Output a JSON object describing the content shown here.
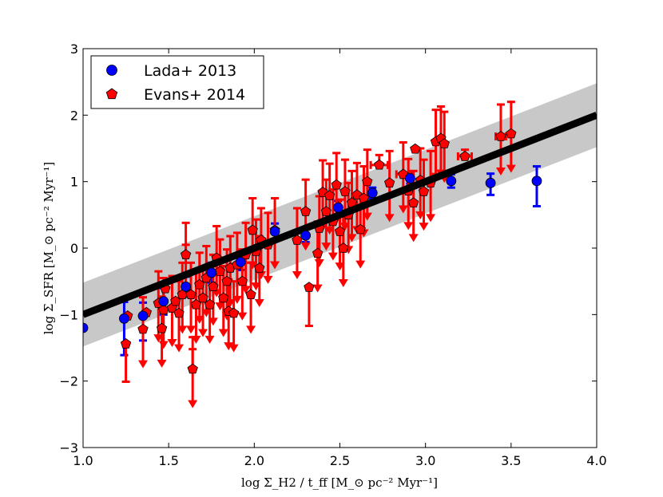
{
  "chart_data": {
    "type": "scatter",
    "title": "",
    "xlabel": "log Σ_H2 / t_ff [M_⊙ pc⁻² Myr⁻¹]",
    "ylabel": "log Σ_SFR [M_⊙ pc⁻² Myr⁻¹]",
    "xlim": [
      1.0,
      4.0
    ],
    "ylim": [
      -3,
      3
    ],
    "xticks": [
      1.0,
      1.5,
      2.0,
      2.5,
      3.0,
      3.5,
      4.0
    ],
    "xtick_labels": [
      "1.0",
      "1.5",
      "2.0",
      "2.5",
      "3.0",
      "3.5",
      "4.0"
    ],
    "yticks": [
      -3,
      -2,
      -1,
      0,
      1,
      2,
      3
    ],
    "ytick_labels": [
      "−3",
      "−2",
      "−1",
      "0",
      "1",
      "2",
      "3"
    ],
    "fit_line": {
      "description": "one-to-one relation",
      "x": [
        1.0,
        4.0
      ],
      "y": [
        -1.0,
        2.0
      ],
      "band_halfwidth": 0.48,
      "line_color": "#000000",
      "band_color": "#c8c8c8"
    },
    "legend": {
      "placement": "top-left",
      "entries": [
        {
          "label": "Lada+ 2013",
          "marker": "circle",
          "color": "#0000ff"
        },
        {
          "label": "Evans+ 2014",
          "marker": "pentagon",
          "color": "#ff0000"
        }
      ]
    },
    "series": [
      {
        "name": "Lada+ 2013",
        "marker": "circle",
        "color": "#0000ff",
        "points": [
          {
            "x": 1.0,
            "y": -1.2,
            "yerr_lo": 0.0,
            "yerr_hi": 0.0
          },
          {
            "x": 1.24,
            "y": -1.06,
            "yerr_lo": 0.55,
            "yerr_hi": 0.25
          },
          {
            "x": 1.35,
            "y": -1.02,
            "yerr_lo": 0.37,
            "yerr_hi": 0.2
          },
          {
            "x": 1.47,
            "y": -0.8,
            "yerr_lo": 0.2,
            "yerr_hi": 0.2
          },
          {
            "x": 1.6,
            "y": -0.58,
            "yerr_lo": 0.15,
            "yerr_hi": 0.15
          },
          {
            "x": 1.75,
            "y": -0.37,
            "yerr_lo": 0.15,
            "yerr_hi": 0.15
          },
          {
            "x": 1.92,
            "y": -0.21,
            "yerr_lo": 0.12,
            "yerr_hi": 0.12
          },
          {
            "x": 2.12,
            "y": 0.25,
            "yerr_lo": 0.12,
            "yerr_hi": 0.12
          },
          {
            "x": 2.3,
            "y": 0.19,
            "yerr_lo": 0.1,
            "yerr_hi": 0.1
          },
          {
            "x": 2.49,
            "y": 0.61,
            "yerr_lo": 0.1,
            "yerr_hi": 0.1
          },
          {
            "x": 2.69,
            "y": 0.83,
            "yerr_lo": 0.08,
            "yerr_hi": 0.08
          },
          {
            "x": 2.91,
            "y": 1.05,
            "yerr_lo": 0.08,
            "yerr_hi": 0.08
          },
          {
            "x": 3.15,
            "y": 1.01,
            "yerr_lo": 0.1,
            "yerr_hi": 0.1
          },
          {
            "x": 3.38,
            "y": 0.98,
            "yerr_lo": 0.18,
            "yerr_hi": 0.14
          },
          {
            "x": 3.65,
            "y": 1.01,
            "yerr_lo": 0.38,
            "yerr_hi": 0.22
          }
        ]
      },
      {
        "name": "Evans+ 2014",
        "marker": "pentagon",
        "color": "#ff0000",
        "points": [
          {
            "x": 1.25,
            "y": -1.44,
            "yerr_lo": 0.57,
            "yerr_hi": 0.0,
            "xerr": 0.0,
            "upper_limit": false
          },
          {
            "x": 1.26,
            "y": -1.02,
            "yerr_lo": 0.0,
            "yerr_hi": 0.0,
            "xerr": 0.0,
            "upper_limit": false
          },
          {
            "x": 1.35,
            "y": -1.22,
            "yerr_lo": 0.0,
            "yerr_hi": 0.0,
            "xerr": 0.0,
            "upper_limit": true
          },
          {
            "x": 1.37,
            "y": -0.97,
            "yerr_lo": 0.0,
            "yerr_hi": 0.0,
            "xerr": 0.0,
            "upper_limit": false
          },
          {
            "x": 1.44,
            "y": -0.83,
            "yerr_lo": 0.0,
            "yerr_hi": 0.0,
            "xerr": 0.0,
            "upper_limit": true
          },
          {
            "x": 1.46,
            "y": -1.21,
            "yerr_lo": 0.0,
            "yerr_hi": 0.0,
            "xerr": 0.0,
            "upper_limit": true
          },
          {
            "x": 1.47,
            "y": -0.93,
            "yerr_lo": 0.0,
            "yerr_hi": 0.0,
            "xerr": 0.0,
            "upper_limit": true
          },
          {
            "x": 1.48,
            "y": -0.61,
            "yerr_lo": 0.0,
            "yerr_hi": 0.0,
            "xerr": 0.0,
            "upper_limit": false
          },
          {
            "x": 1.52,
            "y": -0.9,
            "yerr_lo": 0.0,
            "yerr_hi": 0.0,
            "xerr": 0.0,
            "upper_limit": true
          },
          {
            "x": 1.54,
            "y": -0.8,
            "yerr_lo": 0.0,
            "yerr_hi": 0.0,
            "xerr": 0.0,
            "upper_limit": false
          },
          {
            "x": 1.56,
            "y": -0.98,
            "yerr_lo": 0.0,
            "yerr_hi": 0.0,
            "xerr": 0.0,
            "upper_limit": true
          },
          {
            "x": 1.58,
            "y": -0.7,
            "yerr_lo": 0.0,
            "yerr_hi": 0.0,
            "xerr": 0.0,
            "upper_limit": true
          },
          {
            "x": 1.6,
            "y": -0.1,
            "yerr_lo": 0.0,
            "yerr_hi": 0.15,
            "xerr": 0.0,
            "upper_limit": true
          },
          {
            "x": 1.63,
            "y": -0.7,
            "yerr_lo": 0.0,
            "yerr_hi": 0.0,
            "xerr": 0.0,
            "upper_limit": true
          },
          {
            "x": 1.64,
            "y": -1.82,
            "yerr_lo": 0.0,
            "yerr_hi": 0.3,
            "xerr": 0.0,
            "upper_limit": true
          },
          {
            "x": 1.66,
            "y": -0.85,
            "yerr_lo": 0.0,
            "yerr_hi": 0.0,
            "xerr": 0.0,
            "upper_limit": true
          },
          {
            "x": 1.68,
            "y": -0.55,
            "yerr_lo": 0.0,
            "yerr_hi": 0.0,
            "xerr": 0.0,
            "upper_limit": true
          },
          {
            "x": 1.7,
            "y": -0.75,
            "yerr_lo": 0.0,
            "yerr_hi": 0.0,
            "xerr": 0.0,
            "upper_limit": true
          },
          {
            "x": 1.72,
            "y": -0.45,
            "yerr_lo": 0.0,
            "yerr_hi": 0.0,
            "xerr": 0.0,
            "upper_limit": true
          },
          {
            "x": 1.74,
            "y": -0.85,
            "yerr_lo": 0.0,
            "yerr_hi": 0.0,
            "xerr": 0.0,
            "upper_limit": true
          },
          {
            "x": 1.76,
            "y": -0.58,
            "yerr_lo": 0.0,
            "yerr_hi": 0.0,
            "xerr": 0.0,
            "upper_limit": true
          },
          {
            "x": 1.78,
            "y": -0.15,
            "yerr_lo": 0.0,
            "yerr_hi": 0.0,
            "xerr": 0.0,
            "upper_limit": true
          },
          {
            "x": 1.8,
            "y": -0.35,
            "yerr_lo": 0.0,
            "yerr_hi": 0.0,
            "xerr": 0.0,
            "upper_limit": true
          },
          {
            "x": 1.82,
            "y": -0.75,
            "yerr_lo": 0.0,
            "yerr_hi": 0.0,
            "xerr": 0.0,
            "upper_limit": true
          },
          {
            "x": 1.84,
            "y": -0.5,
            "yerr_lo": 0.0,
            "yerr_hi": 0.0,
            "xerr": 0.0,
            "upper_limit": true
          },
          {
            "x": 1.85,
            "y": -0.95,
            "yerr_lo": 0.0,
            "yerr_hi": 0.0,
            "xerr": 0.0,
            "upper_limit": true
          },
          {
            "x": 1.86,
            "y": -0.3,
            "yerr_lo": 0.0,
            "yerr_hi": 0.0,
            "xerr": 0.0,
            "upper_limit": true
          },
          {
            "x": 1.88,
            "y": -0.98,
            "yerr_lo": 0.0,
            "yerr_hi": 0.0,
            "xerr": 0.0,
            "upper_limit": true
          },
          {
            "x": 1.9,
            "y": -0.25,
            "yerr_lo": 0.0,
            "yerr_hi": 0.0,
            "xerr": 0.0,
            "upper_limit": true
          },
          {
            "x": 1.93,
            "y": -0.5,
            "yerr_lo": 0.0,
            "yerr_hi": 0.0,
            "xerr": 0.0,
            "upper_limit": true
          },
          {
            "x": 1.95,
            "y": -0.1,
            "yerr_lo": 0.0,
            "yerr_hi": 0.0,
            "xerr": 0.0,
            "upper_limit": true
          },
          {
            "x": 1.98,
            "y": -0.7,
            "yerr_lo": 0.0,
            "yerr_hi": 0.0,
            "xerr": 0.0,
            "upper_limit": true
          },
          {
            "x": 1.99,
            "y": 0.27,
            "yerr_lo": 0.0,
            "yerr_hi": 0.0,
            "xerr": 0.0,
            "upper_limit": true
          },
          {
            "x": 2.01,
            "y": -0.05,
            "yerr_lo": 0.0,
            "yerr_hi": 0.0,
            "xerr": 0.0,
            "upper_limit": true
          },
          {
            "x": 2.03,
            "y": -0.3,
            "yerr_lo": 0.0,
            "yerr_hi": 0.0,
            "xerr": 0.0,
            "upper_limit": true
          },
          {
            "x": 2.04,
            "y": 0.12,
            "yerr_lo": 0.0,
            "yerr_hi": 0.0,
            "xerr": 0.0,
            "upper_limit": true
          },
          {
            "x": 2.08,
            "y": 0.05,
            "yerr_lo": 0.0,
            "yerr_hi": 0.0,
            "xerr": 0.0,
            "upper_limit": true
          },
          {
            "x": 2.12,
            "y": 0.27,
            "yerr_lo": 0.0,
            "yerr_hi": 0.0,
            "xerr": 0.0,
            "upper_limit": true
          },
          {
            "x": 2.25,
            "y": 0.12,
            "yerr_lo": 0.0,
            "yerr_hi": 0.0,
            "xerr": 0.0,
            "upper_limit": true
          },
          {
            "x": 2.3,
            "y": 0.55,
            "yerr_lo": 0.0,
            "yerr_hi": 0.0,
            "xerr": 0.0,
            "upper_limit": true
          },
          {
            "x": 2.32,
            "y": -0.59,
            "yerr_lo": 0.58,
            "yerr_hi": 0.0,
            "xerr": 0.0,
            "upper_limit": false
          },
          {
            "x": 2.37,
            "y": -0.08,
            "yerr_lo": 0.0,
            "yerr_hi": 0.0,
            "xerr": 0.0,
            "upper_limit": true
          },
          {
            "x": 2.38,
            "y": 0.3,
            "yerr_lo": 0.0,
            "yerr_hi": 0.0,
            "xerr": 0.0,
            "upper_limit": true
          },
          {
            "x": 2.4,
            "y": 0.84,
            "yerr_lo": 0.0,
            "yerr_hi": 0.0,
            "xerr": 0.0,
            "upper_limit": true
          },
          {
            "x": 2.42,
            "y": 0.55,
            "yerr_lo": 0.0,
            "yerr_hi": 0.0,
            "xerr": 0.0,
            "upper_limit": true
          },
          {
            "x": 2.44,
            "y": 0.79,
            "yerr_lo": 0.0,
            "yerr_hi": 0.0,
            "xerr": 0.0,
            "upper_limit": true
          },
          {
            "x": 2.46,
            "y": 0.4,
            "yerr_lo": 0.0,
            "yerr_hi": 0.0,
            "xerr": 0.0,
            "upper_limit": true
          },
          {
            "x": 2.48,
            "y": 0.95,
            "yerr_lo": 0.0,
            "yerr_hi": 0.0,
            "xerr": 0.0,
            "upper_limit": true
          },
          {
            "x": 2.5,
            "y": 0.25,
            "yerr_lo": 0.0,
            "yerr_hi": 0.0,
            "xerr": 0.0,
            "upper_limit": true
          },
          {
            "x": 2.52,
            "y": 0.0,
            "yerr_lo": 0.0,
            "yerr_hi": 0.0,
            "xerr": 0.0,
            "upper_limit": true
          },
          {
            "x": 2.53,
            "y": 0.85,
            "yerr_lo": 0.0,
            "yerr_hi": 0.0,
            "xerr": 0.0,
            "upper_limit": true
          },
          {
            "x": 2.55,
            "y": 0.5,
            "yerr_lo": 0.0,
            "yerr_hi": 0.0,
            "xerr": 0.0,
            "upper_limit": true
          },
          {
            "x": 2.57,
            "y": 0.68,
            "yerr_lo": 0.0,
            "yerr_hi": 0.0,
            "xerr": 0.0,
            "upper_limit": true
          },
          {
            "x": 2.6,
            "y": 0.8,
            "yerr_lo": 0.0,
            "yerr_hi": 0.0,
            "xerr": 0.0,
            "upper_limit": true
          },
          {
            "x": 2.62,
            "y": 0.28,
            "yerr_lo": 0.0,
            "yerr_hi": 0.0,
            "xerr": 0.0,
            "upper_limit": true
          },
          {
            "x": 2.64,
            "y": 0.75,
            "yerr_lo": 0.0,
            "yerr_hi": 0.0,
            "xerr": 0.0,
            "upper_limit": true
          },
          {
            "x": 2.66,
            "y": 1.0,
            "yerr_lo": 0.0,
            "yerr_hi": 0.0,
            "xerr": 0.0,
            "upper_limit": true
          },
          {
            "x": 2.73,
            "y": 1.25,
            "yerr_lo": 0.0,
            "yerr_hi": 0.15,
            "xerr": 0.05,
            "upper_limit": false
          },
          {
            "x": 2.79,
            "y": 0.98,
            "yerr_lo": 0.0,
            "yerr_hi": 0.0,
            "xerr": 0.0,
            "upper_limit": true
          },
          {
            "x": 2.87,
            "y": 1.11,
            "yerr_lo": 0.0,
            "yerr_hi": 0.0,
            "xerr": 0.04,
            "upper_limit": true
          },
          {
            "x": 2.9,
            "y": 0.86,
            "yerr_lo": 0.0,
            "yerr_hi": 0.0,
            "xerr": 0.0,
            "upper_limit": true
          },
          {
            "x": 2.93,
            "y": 0.68,
            "yerr_lo": 0.0,
            "yerr_hi": 0.0,
            "xerr": 0.0,
            "upper_limit": true
          },
          {
            "x": 2.94,
            "y": 1.49,
            "yerr_lo": 0.0,
            "yerr_hi": 0.0,
            "xerr": 0.0,
            "upper_limit": false
          },
          {
            "x": 2.97,
            "y": 1.02,
            "yerr_lo": 0.0,
            "yerr_hi": 0.0,
            "xerr": 0.0,
            "upper_limit": true
          },
          {
            "x": 2.99,
            "y": 0.85,
            "yerr_lo": 0.0,
            "yerr_hi": 0.0,
            "xerr": 0.0,
            "upper_limit": true
          },
          {
            "x": 3.03,
            "y": 0.98,
            "yerr_lo": 0.0,
            "yerr_hi": 0.0,
            "xerr": 0.0,
            "upper_limit": true
          },
          {
            "x": 3.06,
            "y": 1.6,
            "yerr_lo": 0.0,
            "yerr_hi": 0.0,
            "xerr": 0.0,
            "upper_limit": true
          },
          {
            "x": 3.09,
            "y": 1.65,
            "yerr_lo": 0.0,
            "yerr_hi": 0.0,
            "xerr": 0.0,
            "upper_limit": true
          },
          {
            "x": 3.11,
            "y": 1.57,
            "yerr_lo": 0.0,
            "yerr_hi": 0.0,
            "xerr": 0.0,
            "upper_limit": true
          },
          {
            "x": 3.23,
            "y": 1.38,
            "yerr_lo": 0.0,
            "yerr_hi": 0.1,
            "xerr": 0.04,
            "upper_limit": false
          },
          {
            "x": 3.44,
            "y": 1.68,
            "yerr_lo": 0.0,
            "yerr_hi": 0.0,
            "xerr": 0.03,
            "upper_limit": true
          },
          {
            "x": 3.5,
            "y": 1.72,
            "yerr_lo": 0.0,
            "yerr_hi": 0.0,
            "xerr": 0.0,
            "upper_limit": true
          }
        ]
      }
    ]
  }
}
